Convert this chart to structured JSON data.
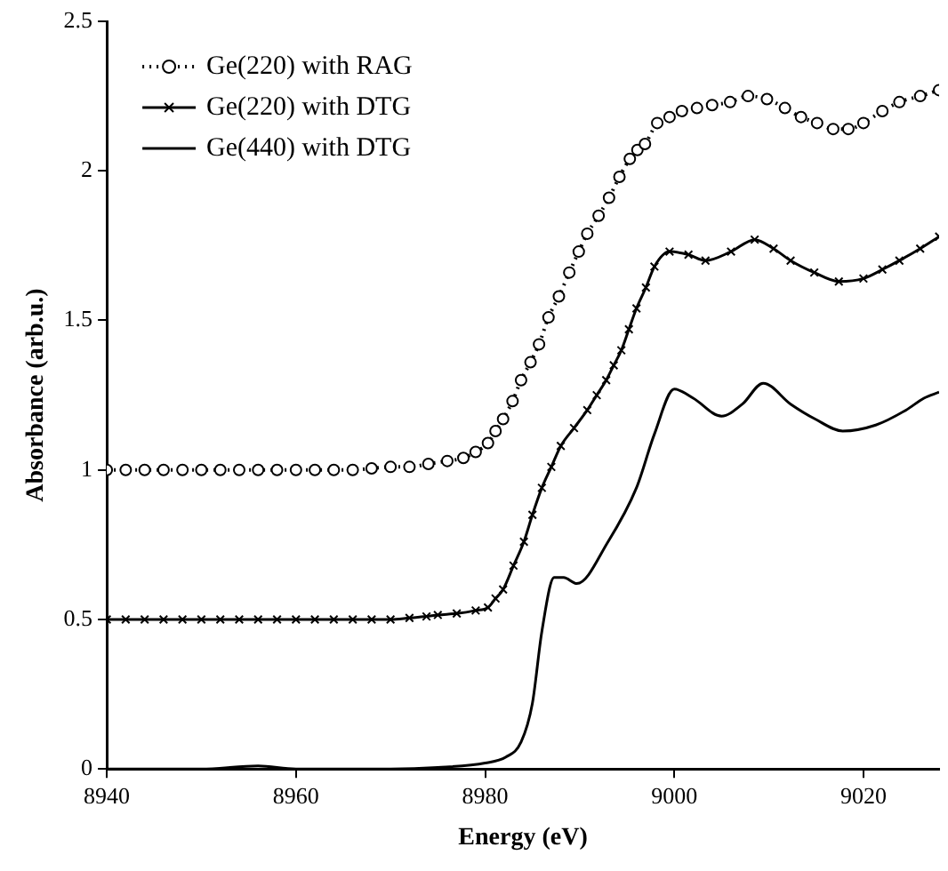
{
  "chart_data": {
    "type": "line",
    "xlabel": "Energy (eV)",
    "ylabel": "Absorbance (arb.u.)",
    "xlim": [
      8940,
      9028
    ],
    "xticks": [
      8940,
      8960,
      8980,
      9000,
      9020
    ],
    "ylim": [
      0,
      2.5
    ],
    "yticks": [
      0,
      0.5,
      1,
      1.5,
      2,
      2.5
    ],
    "grid": false,
    "legend": "top left",
    "series": [
      {
        "name": "Ge(220) with RAG",
        "color": "#000000",
        "marker": "circle",
        "line_style": "dotted",
        "x": [
          8940,
          8942,
          8944,
          8946,
          8948,
          8950,
          8952,
          8954,
          8956,
          8958,
          8960,
          8962,
          8964,
          8966,
          8968,
          8970,
          8972,
          8974,
          8976,
          8977.7,
          8979,
          8980.3,
          8981.1,
          8981.9,
          8982.9,
          8983.8,
          8984.8,
          8985.7,
          8986.7,
          8987.8,
          8988.9,
          8989.9,
          8990.8,
          8992,
          8993.1,
          8994.2,
          8995.3,
          8996.1,
          8996.9,
          8998.2,
          8999.5,
          9000.8,
          9002.4,
          9004,
          9005.9,
          9007.8,
          9009.8,
          9011.7,
          9013.4,
          9015.1,
          9016.8,
          9018.4,
          9020,
          9022,
          9023.8,
          9026,
          9028
        ],
        "values": [
          1,
          1,
          1,
          1,
          1,
          1,
          1,
          1,
          1,
          1,
          1,
          1,
          1,
          1,
          1.005,
          1.01,
          1.01,
          1.02,
          1.03,
          1.04,
          1.06,
          1.09,
          1.13,
          1.17,
          1.23,
          1.3,
          1.36,
          1.42,
          1.51,
          1.58,
          1.66,
          1.73,
          1.79,
          1.85,
          1.91,
          1.98,
          2.04,
          2.07,
          2.09,
          2.16,
          2.18,
          2.2,
          2.21,
          2.22,
          2.23,
          2.25,
          2.24,
          2.21,
          2.18,
          2.16,
          2.14,
          2.14,
          2.16,
          2.2,
          2.23,
          2.25,
          2.27
        ]
      },
      {
        "name": "Ge(220) with DTG",
        "color": "#000000",
        "marker": "cross",
        "line_style": "solid",
        "x": [
          8940,
          8942,
          8944,
          8946,
          8948,
          8950,
          8952,
          8954,
          8956,
          8958,
          8960,
          8962,
          8964,
          8966,
          8968,
          8970,
          8972,
          8973.8,
          8975,
          8977,
          8979,
          8980.3,
          8981.1,
          8981.9,
          8983,
          8984.1,
          8985,
          8986,
          8987,
          8988,
          8989.4,
          8990.8,
          8991.8,
          8992.8,
          8993.6,
          8994.4,
          8995.2,
          8996,
          8997,
          8997.9,
          8999.5,
          9001.5,
          9003.3,
          9006,
          9008.5,
          9010.5,
          9012.3,
          9014.8,
          9017.4,
          9020,
          9022,
          9023.8,
          9026,
          9028
        ],
        "values": [
          0.5,
          0.5,
          0.5,
          0.5,
          0.5,
          0.5,
          0.5,
          0.5,
          0.5,
          0.5,
          0.5,
          0.5,
          0.5,
          0.5,
          0.5,
          0.5,
          0.505,
          0.51,
          0.515,
          0.52,
          0.53,
          0.54,
          0.57,
          0.6,
          0.68,
          0.76,
          0.85,
          0.94,
          1.01,
          1.08,
          1.14,
          1.2,
          1.25,
          1.3,
          1.35,
          1.4,
          1.47,
          1.54,
          1.61,
          1.68,
          1.73,
          1.72,
          1.7,
          1.73,
          1.77,
          1.74,
          1.7,
          1.66,
          1.63,
          1.64,
          1.67,
          1.7,
          1.74,
          1.78
        ]
      },
      {
        "name": "Ge(440) with DTG",
        "color": "#000000",
        "marker": "none",
        "line_style": "solid",
        "x": [
          8940,
          8950,
          8956,
          8960,
          8970,
          8975,
          8980,
          8982.2,
          8983.8,
          8985,
          8986,
          8987.3,
          8988.3,
          8989.7,
          8993,
          8996,
          8997.9,
          9000,
          9002,
          9005,
          9007.2,
          9009.4,
          9012.3,
          9014.9,
          9017.8,
          9021.3,
          9024.5,
          9026.4,
          9028
        ],
        "values": [
          0,
          0,
          0.01,
          0,
          0,
          0.005,
          0.02,
          0.04,
          0.09,
          0.22,
          0.46,
          0.64,
          0.64,
          0.62,
          0.76,
          0.94,
          1.12,
          1.27,
          1.24,
          1.18,
          1.22,
          1.29,
          1.22,
          1.17,
          1.13,
          1.15,
          1.2,
          1.24,
          1.26
        ]
      }
    ]
  }
}
